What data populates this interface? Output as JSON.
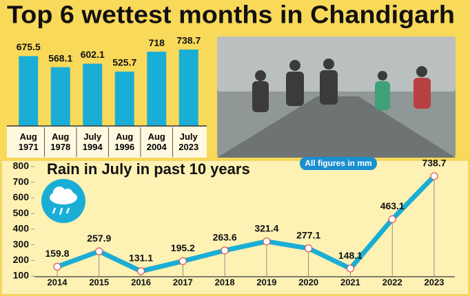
{
  "title": "Top 6 wettest months in Chandigarh",
  "note": "All figures in mm",
  "chart_data": [
    {
      "type": "bar",
      "categories": [
        "Aug 1971",
        "Aug 1978",
        "July 1994",
        "Aug 1996",
        "Aug 2004",
        "July 2023"
      ],
      "values": [
        675.5,
        568.1,
        602.1,
        525.7,
        718,
        738.7
      ],
      "color": "#1aaed6"
    },
    {
      "type": "line",
      "title": "Rain in July in past 10 years",
      "categories": [
        "2014",
        "2015",
        "2016",
        "2017",
        "2018",
        "2019",
        "2020",
        "2021",
        "2022",
        "2023"
      ],
      "values": [
        159.8,
        257.9,
        131.1,
        195.2,
        263.6,
        321.4,
        277.1,
        148.1,
        463.1,
        738.7
      ],
      "color": "#1aaed6",
      "ylim": [
        100,
        800
      ],
      "yticks": [
        100,
        200,
        300,
        400,
        500,
        600,
        700,
        800
      ]
    }
  ]
}
